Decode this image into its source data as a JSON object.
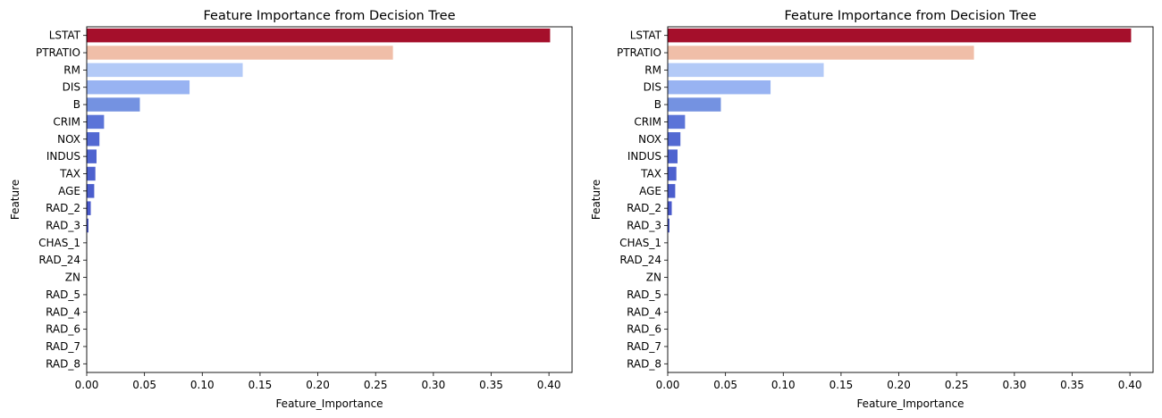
{
  "chart_data": [
    {
      "type": "bar",
      "orientation": "horizontal",
      "title": "Feature Importance from Decision Tree",
      "xlabel": "Feature_Importance",
      "ylabel": "Feature",
      "xlim": [
        0,
        0.42
      ],
      "xticks": [
        "0.00",
        "0.05",
        "0.10",
        "0.15",
        "0.20",
        "0.25",
        "0.30",
        "0.35",
        "0.40"
      ],
      "grid": false,
      "categories": [
        "LSTAT",
        "PTRATIO",
        "RM",
        "DIS",
        "B",
        "CRIM",
        "NOX",
        "INDUS",
        "TAX",
        "AGE",
        "RAD_2",
        "RAD_3",
        "CHAS_1",
        "RAD_24",
        "ZN",
        "RAD_5",
        "RAD_4",
        "RAD_6",
        "RAD_7",
        "RAD_8"
      ],
      "values": [
        0.401,
        0.265,
        0.135,
        0.089,
        0.046,
        0.015,
        0.011,
        0.0085,
        0.0075,
        0.0065,
        0.0035,
        0.0015,
        0.0003,
        0.0002,
        0.0001,
        0,
        0,
        0,
        0,
        0
      ],
      "colors": [
        "#a50f2b",
        "#f0bea8",
        "#b3caf7",
        "#98b3f2",
        "#7492e1",
        "#5b74d8",
        "#5369d2",
        "#4f64cf",
        "#4d61ce",
        "#4b5ecd",
        "#4959cb",
        "#4655c9",
        "#4552c8",
        "#4450c7",
        "#434ec6",
        "#424cc5",
        "#414ac4",
        "#4048c3",
        "#3f46c2",
        "#3e44c1"
      ]
    },
    {
      "type": "bar",
      "orientation": "horizontal",
      "title": "Feature Importance from Decision Tree",
      "xlabel": "Feature_Importance",
      "ylabel": "Feature",
      "xlim": [
        0,
        0.42
      ],
      "xticks": [
        "0.00",
        "0.05",
        "0.10",
        "0.15",
        "0.20",
        "0.25",
        "0.30",
        "0.35",
        "0.40"
      ],
      "grid": false,
      "categories": [
        "LSTAT",
        "PTRATIO",
        "RM",
        "DIS",
        "B",
        "CRIM",
        "NOX",
        "INDUS",
        "TAX",
        "AGE",
        "RAD_2",
        "RAD_3",
        "CHAS_1",
        "RAD_24",
        "ZN",
        "RAD_5",
        "RAD_4",
        "RAD_6",
        "RAD_7",
        "RAD_8"
      ],
      "values": [
        0.401,
        0.265,
        0.135,
        0.089,
        0.046,
        0.015,
        0.011,
        0.0085,
        0.0075,
        0.0065,
        0.0035,
        0.0015,
        0.0003,
        0.0002,
        0.0001,
        0,
        0,
        0,
        0,
        0
      ],
      "colors": [
        "#a50f2b",
        "#f0bea8",
        "#b3caf7",
        "#98b3f2",
        "#7492e1",
        "#5b74d8",
        "#5369d2",
        "#4f64cf",
        "#4d61ce",
        "#4b5ecd",
        "#4959cb",
        "#4655c9",
        "#4552c8",
        "#4450c7",
        "#434ec6",
        "#424cc5",
        "#414ac4",
        "#4048c3",
        "#3f46c2",
        "#3e44c1"
      ]
    }
  ]
}
